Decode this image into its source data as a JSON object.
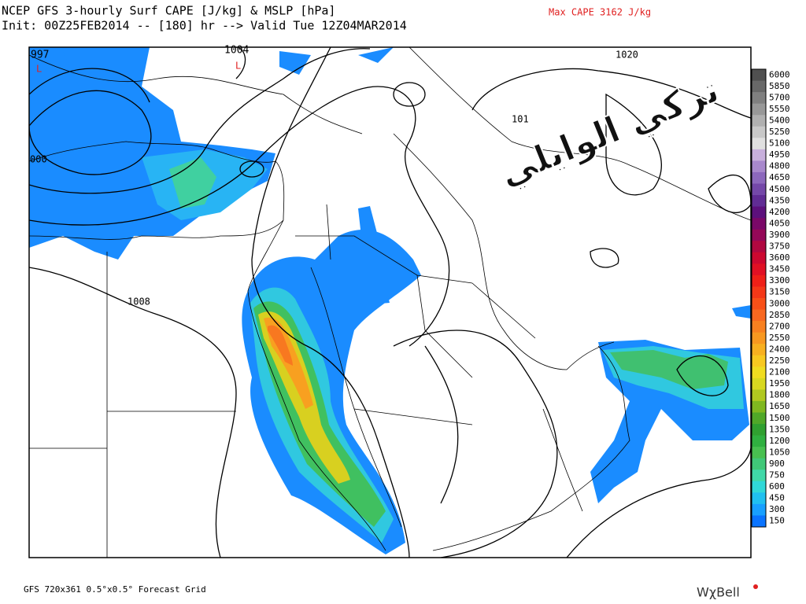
{
  "header": {
    "line1": "NCEP GFS 3-hourly Surf CAPE [J/kg] & MSLP [hPa]",
    "line2": "Init: 00Z25FEB2014 -- [180] hr --> Valid Tue 12Z04MAR2014",
    "max_cape": "Max CAPE   3162 J/kg"
  },
  "map": {
    "isobar_labels": [
      "997",
      "1004",
      "1020",
      "101",
      "000",
      "1008"
    ],
    "low_markers": [
      "L",
      "L"
    ]
  },
  "colorbar": {
    "ticks": [
      6000,
      5850,
      5700,
      5550,
      5400,
      5250,
      5100,
      4950,
      4800,
      4650,
      4500,
      4350,
      4200,
      4050,
      3900,
      3750,
      3600,
      3450,
      3300,
      3150,
      3000,
      2850,
      2700,
      2550,
      2400,
      2250,
      2100,
      1950,
      1800,
      1650,
      1500,
      1350,
      1200,
      1050,
      900,
      750,
      600,
      450,
      300,
      150
    ],
    "colors": [
      "#505050",
      "#686868",
      "#808080",
      "#989898",
      "#b0b0b0",
      "#c8c8c8",
      "#e0e0e0",
      "#c8b0dc",
      "#a888cc",
      "#8c68bc",
      "#7448a8",
      "#602c94",
      "#5c107c",
      "#7a0868",
      "#940858",
      "#b00840",
      "#cc0830",
      "#e01024",
      "#ee2018",
      "#f43818",
      "#f85018",
      "#f86820",
      "#f88020",
      "#f89820",
      "#f8b020",
      "#f8c820",
      "#f0dc20",
      "#d8d820",
      "#b0c820",
      "#80b820",
      "#50a828",
      "#30a030",
      "#30b040",
      "#48c050",
      "#40c878",
      "#40d8a8",
      "#30d8d8",
      "#20c0f0",
      "#18a0ff",
      "#0a74ff"
    ]
  },
  "watermark": "تركي الوايلي",
  "footer": {
    "grid": "GFS 720x361 0.5°x0.5° Forecast Grid",
    "brand": "WχBell"
  }
}
